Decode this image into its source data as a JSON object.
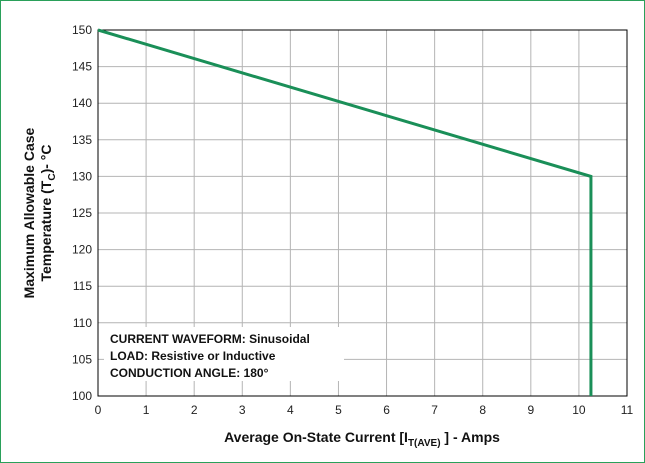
{
  "chart_data": {
    "type": "line",
    "x": [
      0,
      10.25,
      10.25
    ],
    "series": [
      {
        "values": [
          150,
          130,
          100
        ]
      }
    ],
    "xlim": [
      0,
      11
    ],
    "ylim": [
      100,
      150
    ],
    "x_ticks": [
      0,
      1,
      2,
      3,
      4,
      5,
      6,
      7,
      8,
      9,
      10,
      11
    ],
    "y_ticks": [
      100,
      105,
      110,
      115,
      120,
      125,
      130,
      135,
      140,
      145,
      150
    ],
    "xlabel": {
      "prefix": "Average On-State Current [I",
      "subscript": "T(AVE)",
      "suffix": " ] - Amps"
    },
    "ylabel": {
      "line1": "Maximum Allowable Case",
      "line2_prefix": "Temperature (T",
      "line2_subscript": "C",
      "line2_suffix": ")- °C"
    },
    "annotations": [
      "CURRENT WAVEFORM: Sinusoidal",
      "LOAD: Resistive or Inductive",
      "CONDUCTION ANGLE: 180°"
    ],
    "grid": true,
    "colors": {
      "line": "#1a8f58",
      "frame": "#2aa05a",
      "grid": "#b4b4b4",
      "axis": "#000000"
    }
  }
}
